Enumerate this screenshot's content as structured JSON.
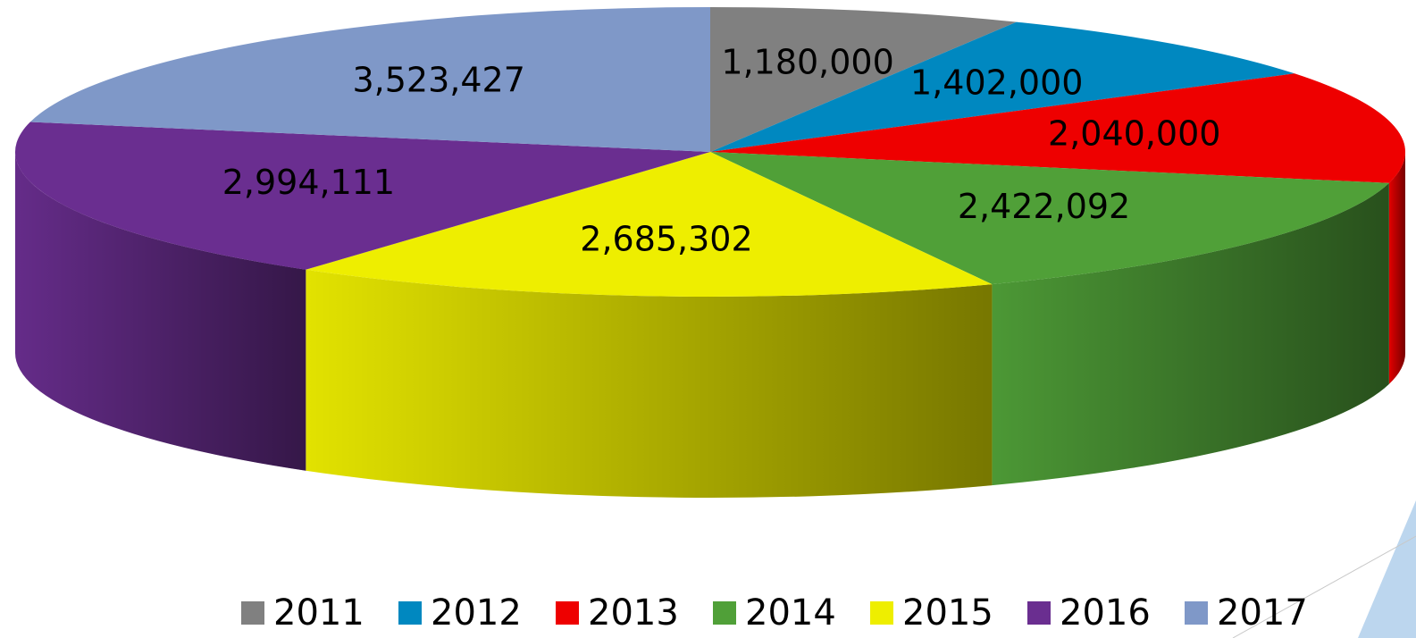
{
  "chart_data": {
    "type": "pie3d",
    "categories": [
      "2011",
      "2012",
      "2013",
      "2014",
      "2015",
      "2016",
      "2017"
    ],
    "values": [
      1180000,
      1402000,
      2040000,
      2422092,
      2685302,
      2994111,
      3523427
    ],
    "value_labels": [
      "1,180,000",
      "1,402,000",
      "2,040,000",
      "2,422,092",
      "2,685,302",
      "2,994,111",
      "3,523,427"
    ],
    "colors": [
      "#808080",
      "#0088c0",
      "#ee0000",
      "#50a038",
      "#eeee00",
      "#6a2e90",
      "#7f98c8"
    ],
    "legend": "bottom"
  }
}
